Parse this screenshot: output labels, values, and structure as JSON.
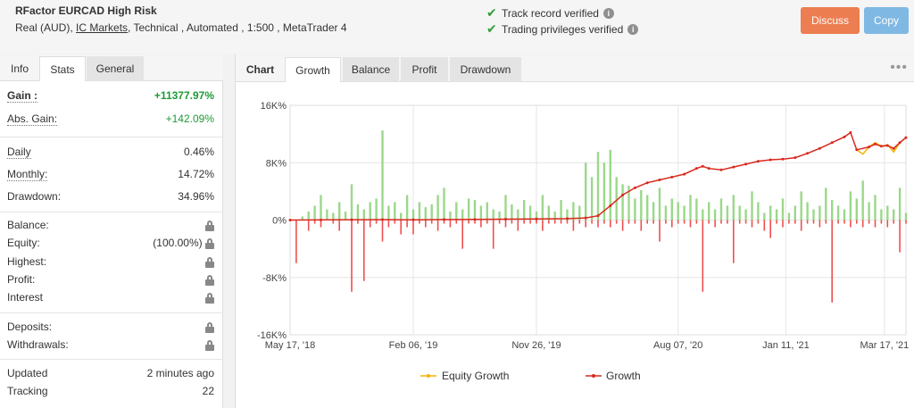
{
  "header": {
    "title": "RFactor EURCAD High Risk",
    "account_type": "Real (AUD),",
    "broker": "IC Markets",
    "details": ", Technical , Automated , 1:500 , MetaTrader 4",
    "verifications": [
      "Track record verified",
      "Trading privileges verified"
    ],
    "discuss_label": "Discuss",
    "copy_label": "Copy"
  },
  "left_tabs": [
    "Info",
    "Stats",
    "General"
  ],
  "stats": {
    "gain": {
      "label": "Gain :",
      "value": "+11377.97%"
    },
    "abs_gain": {
      "label": "Abs. Gain:",
      "value": "+142.09%"
    },
    "daily": {
      "label": "Daily",
      "value": "0.46%"
    },
    "monthly": {
      "label": "Monthly:",
      "value": "14.72%"
    },
    "drawdown": {
      "label": "Drawdown:",
      "value": "34.96%"
    },
    "balance": {
      "label": "Balance:"
    },
    "equity": {
      "label": "Equity:",
      "value": "(100.00%)"
    },
    "highest": {
      "label": "Highest:"
    },
    "profit": {
      "label": "Profit:"
    },
    "interest": {
      "label": "Interest"
    },
    "deposits": {
      "label": "Deposits:"
    },
    "withdrawals": {
      "label": "Withdrawals:"
    },
    "updated": {
      "label": "Updated",
      "value": "2 minutes ago"
    },
    "tracking": {
      "label": "Tracking",
      "value": "22"
    }
  },
  "right_tabs": [
    "Chart",
    "Growth",
    "Balance",
    "Profit",
    "Drawdown"
  ],
  "icons": {
    "check": "check-icon",
    "info": "info-icon",
    "lock": "lock-icon",
    "more": "more-icon"
  },
  "colors": {
    "discuss": "#ec7e52",
    "copy": "#7fb8e3",
    "growth_line": "#d9291e",
    "equity_line": "#f5b400",
    "bar_positive": "#9bd88a",
    "bar_negative": "#ef4f4f"
  },
  "chart_data": {
    "type": "line+bar",
    "yticks": [
      "16K%",
      "8K%",
      "0%",
      "-8K%",
      "-16K%"
    ],
    "ylim": [
      -16000,
      16000
    ],
    "xticks": [
      "May 17, '18",
      "Feb 06, '19",
      "Nov 26, '19",
      "Aug 07, '20",
      "Jan 11, '21",
      "Mar 17, '21"
    ],
    "legend": [
      "Equity Growth",
      "Growth"
    ],
    "legend_position": "bottom",
    "growth": [
      [
        0,
        0
      ],
      [
        0.05,
        20
      ],
      [
        0.1,
        50
      ],
      [
        0.15,
        60
      ],
      [
        0.2,
        40
      ],
      [
        0.25,
        80
      ],
      [
        0.3,
        100
      ],
      [
        0.35,
        120
      ],
      [
        0.4,
        160
      ],
      [
        0.45,
        200
      ],
      [
        0.48,
        300
      ],
      [
        0.5,
        600
      ],
      [
        0.52,
        2000
      ],
      [
        0.54,
        3500
      ],
      [
        0.56,
        4500
      ],
      [
        0.58,
        5200
      ],
      [
        0.6,
        5600
      ],
      [
        0.62,
        6000
      ],
      [
        0.64,
        6400
      ],
      [
        0.66,
        7200
      ],
      [
        0.67,
        7500
      ],
      [
        0.68,
        7200
      ],
      [
        0.7,
        7000
      ],
      [
        0.72,
        7400
      ],
      [
        0.74,
        7800
      ],
      [
        0.76,
        8200
      ],
      [
        0.78,
        8400
      ],
      [
        0.8,
        8500
      ],
      [
        0.82,
        8700
      ],
      [
        0.84,
        9300
      ],
      [
        0.86,
        10000
      ],
      [
        0.88,
        10800
      ],
      [
        0.9,
        11600
      ],
      [
        0.91,
        12200
      ],
      [
        0.92,
        9800
      ],
      [
        0.94,
        10200
      ],
      [
        0.95,
        10600
      ],
      [
        0.96,
        10300
      ],
      [
        0.97,
        10400
      ],
      [
        0.98,
        10000
      ],
      [
        0.99,
        10800
      ],
      [
        1.0,
        11500
      ]
    ],
    "equity": [
      [
        0.92,
        9800
      ],
      [
        0.93,
        9200
      ],
      [
        0.94,
        10200
      ],
      [
        0.95,
        10800
      ],
      [
        0.96,
        10300
      ],
      [
        0.97,
        10500
      ],
      [
        0.98,
        9500
      ],
      [
        0.99,
        10800
      ],
      [
        1.0,
        11500
      ]
    ],
    "bars": [
      [
        0.01,
        -2000,
        -6000
      ],
      [
        0.02,
        500,
        0
      ],
      [
        0.03,
        1200,
        -1500
      ],
      [
        0.04,
        2000,
        -500
      ],
      [
        0.05,
        3500,
        -1000
      ],
      [
        0.06,
        1500,
        0
      ],
      [
        0.07,
        1000,
        -500
      ],
      [
        0.08,
        2500,
        -1500
      ],
      [
        0.09,
        1200,
        0
      ],
      [
        0.1,
        5000,
        -10000
      ],
      [
        0.11,
        2200,
        -500
      ],
      [
        0.12,
        1500,
        -8500
      ],
      [
        0.13,
        2500,
        -1000
      ],
      [
        0.14,
        3000,
        -500
      ],
      [
        0.15,
        12500,
        -3000
      ],
      [
        0.16,
        2000,
        -1000
      ],
      [
        0.17,
        2500,
        -500
      ],
      [
        0.18,
        1000,
        -2000
      ],
      [
        0.19,
        3500,
        -1000
      ],
      [
        0.2,
        1500,
        -2000
      ],
      [
        0.21,
        2500,
        -500
      ],
      [
        0.22,
        1800,
        -1000
      ],
      [
        0.23,
        2200,
        -500
      ],
      [
        0.24,
        3500,
        -1500
      ],
      [
        0.25,
        4500,
        -500
      ],
      [
        0.26,
        1200,
        -1000
      ],
      [
        0.27,
        2500,
        -500
      ],
      [
        0.28,
        1500,
        -4000
      ],
      [
        0.29,
        3000,
        -500
      ],
      [
        0.3,
        2800,
        -500
      ],
      [
        0.31,
        2000,
        -1000
      ],
      [
        0.32,
        2500,
        -500
      ],
      [
        0.33,
        1500,
        -4000
      ],
      [
        0.34,
        1200,
        -500
      ],
      [
        0.35,
        3500,
        -1000
      ],
      [
        0.36,
        2200,
        -500
      ],
      [
        0.37,
        1500,
        -1500
      ],
      [
        0.38,
        2800,
        -500
      ],
      [
        0.39,
        2000,
        -500
      ],
      [
        0.4,
        1200,
        -500
      ],
      [
        0.41,
        3500,
        -1500
      ],
      [
        0.42,
        2000,
        -500
      ],
      [
        0.43,
        1200,
        -500
      ],
      [
        0.44,
        2800,
        -500
      ],
      [
        0.45,
        1500,
        -500
      ],
      [
        0.46,
        2500,
        -1500
      ],
      [
        0.47,
        2000,
        -500
      ],
      [
        0.48,
        8000,
        -1000
      ],
      [
        0.49,
        6000,
        -500
      ],
      [
        0.5,
        9500,
        -1000
      ],
      [
        0.51,
        8000,
        -500
      ],
      [
        0.52,
        9800,
        -1000
      ],
      [
        0.53,
        6000,
        -500
      ],
      [
        0.54,
        5000,
        -1500
      ],
      [
        0.55,
        4800,
        -500
      ],
      [
        0.56,
        3000,
        -500
      ],
      [
        0.57,
        4200,
        -1500
      ],
      [
        0.58,
        3500,
        -500
      ],
      [
        0.59,
        2500,
        -500
      ],
      [
        0.6,
        4500,
        -3000
      ],
      [
        0.61,
        2000,
        -500
      ],
      [
        0.62,
        3000,
        -1000
      ],
      [
        0.63,
        2500,
        -500
      ],
      [
        0.64,
        2000,
        -500
      ],
      [
        0.65,
        3500,
        -1000
      ],
      [
        0.66,
        3000,
        -500
      ],
      [
        0.67,
        1500,
        -10000
      ],
      [
        0.68,
        2500,
        -500
      ],
      [
        0.69,
        1500,
        -1000
      ],
      [
        0.7,
        3000,
        -500
      ],
      [
        0.71,
        2000,
        -500
      ],
      [
        0.72,
        3500,
        -6000
      ],
      [
        0.73,
        2000,
        -500
      ],
      [
        0.74,
        1500,
        -500
      ],
      [
        0.75,
        4000,
        -1000
      ],
      [
        0.76,
        2500,
        -500
      ],
      [
        0.77,
        1000,
        -1500
      ],
      [
        0.78,
        2000,
        -2500
      ],
      [
        0.79,
        1500,
        -500
      ],
      [
        0.8,
        3000,
        -1000
      ],
      [
        0.81,
        1000,
        -500
      ],
      [
        0.82,
        2000,
        -500
      ],
      [
        0.83,
        4000,
        -1500
      ],
      [
        0.84,
        2500,
        -500
      ],
      [
        0.85,
        1500,
        -500
      ],
      [
        0.86,
        2000,
        -1000
      ],
      [
        0.87,
        4500,
        -500
      ],
      [
        0.88,
        2800,
        -11500
      ],
      [
        0.89,
        2000,
        -500
      ],
      [
        0.9,
        1500,
        -500
      ],
      [
        0.91,
        4000,
        -1000
      ],
      [
        0.92,
        3000,
        -500
      ],
      [
        0.93,
        5500,
        -1000
      ],
      [
        0.94,
        2500,
        -500
      ],
      [
        0.95,
        3500,
        -1000
      ],
      [
        0.96,
        1500,
        -500
      ],
      [
        0.97,
        2000,
        -1000
      ],
      [
        0.98,
        1500,
        -500
      ],
      [
        0.99,
        4500,
        -4500
      ],
      [
        1.0,
        1000,
        -500
      ]
    ]
  },
  "chart_legend": {
    "equity": "Equity Growth",
    "growth": "Growth"
  }
}
